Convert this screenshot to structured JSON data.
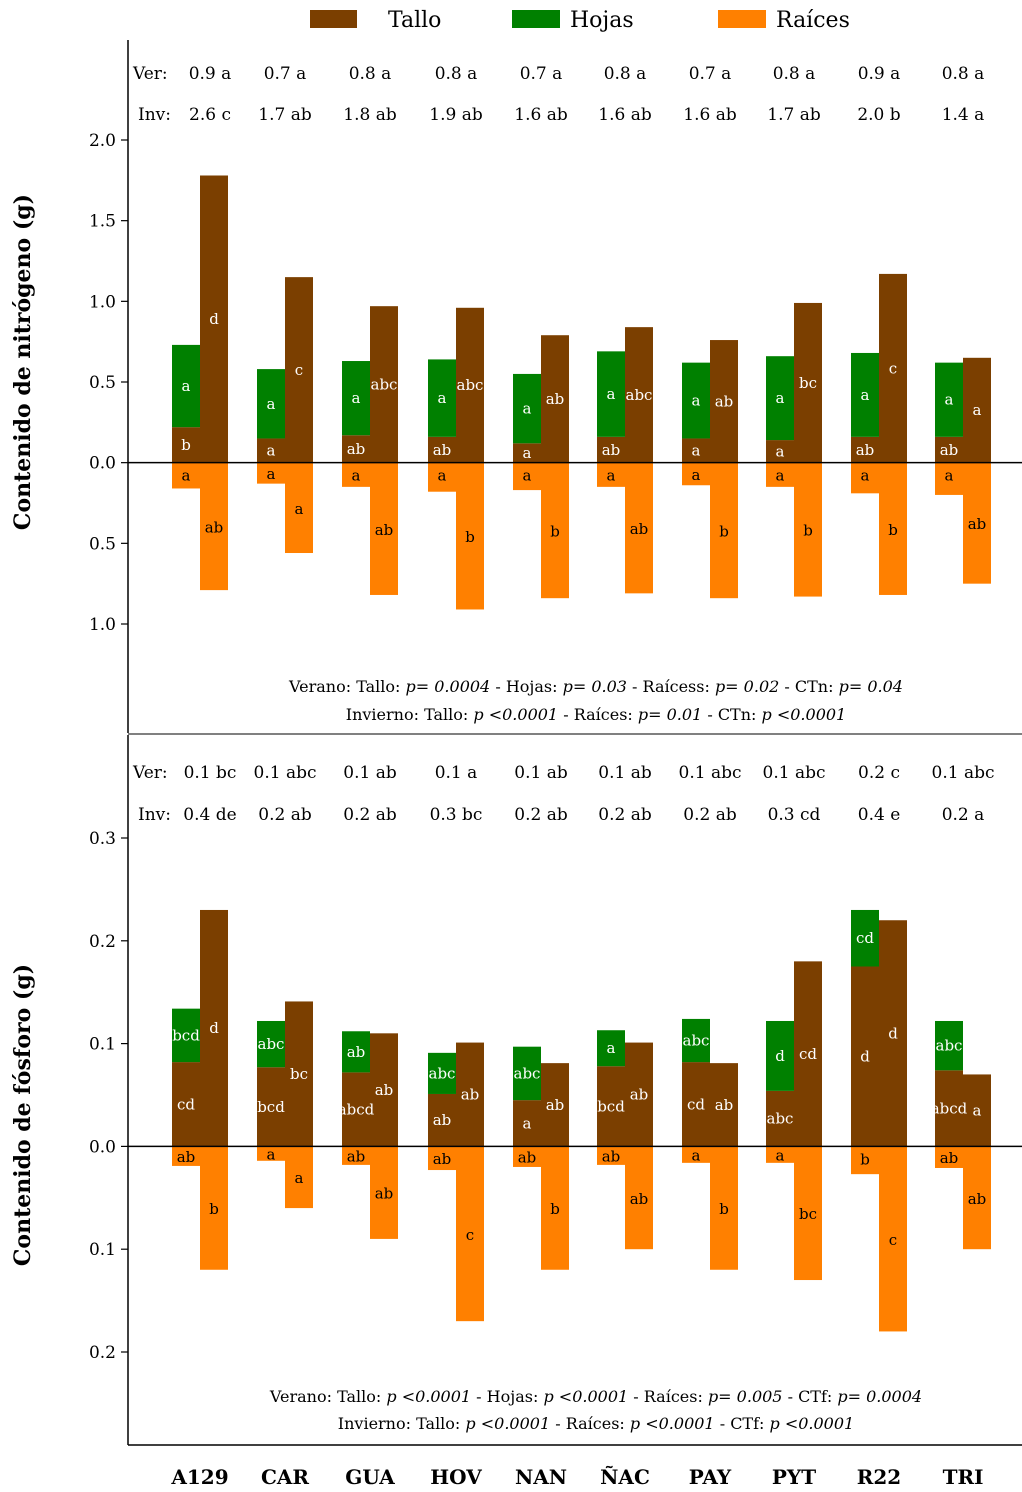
{
  "colors": {
    "tallo": "#7B3F00",
    "hojas": "#008000",
    "raices": "#FF8000"
  },
  "legend": [
    {
      "key": "tallo",
      "label": "Tallo"
    },
    {
      "key": "hojas",
      "label": "Hojas"
    },
    {
      "key": "raices",
      "label": "Raíces"
    }
  ],
  "chart_data": [
    {
      "type": "bar",
      "panel": "top",
      "ylabel": "Contenido de nitrógeno (g)",
      "ylim": [
        -1.0,
        2.0
      ],
      "yticks": [
        {
          "value": 2.0,
          "label": "2.0"
        },
        {
          "value": 1.5,
          "label": "1.5"
        },
        {
          "value": 1.0,
          "label": "1.0"
        },
        {
          "value": 0.5,
          "label": "0.5"
        },
        {
          "value": 0.0,
          "label": "0.0"
        },
        {
          "value": -0.5,
          "label": "0.5"
        },
        {
          "value": -1.0,
          "label": "1.0"
        }
      ],
      "categories": [
        "A129",
        "CAR",
        "GUA",
        "HOV",
        "NAN",
        "ÑAC",
        "PAY",
        "PYT",
        "R22",
        "TRI"
      ],
      "ver_prefix": "Ver:",
      "inv_prefix": "Inv:",
      "ver_values": [
        "0.9 a",
        "0.7 a",
        "0.8 a",
        "0.8 a",
        "0.7 a",
        "0.8 a",
        "0.7 a",
        "0.8 a",
        "0.9 a",
        "0.8 a"
      ],
      "inv_values": [
        "2.6 c",
        "1.7 ab",
        "1.8 ab",
        "1.9 ab",
        "1.6 ab",
        "1.6 ab",
        "1.6 ab",
        "1.7 ab",
        "2.0 b",
        "1.4 a"
      ],
      "series": [
        {
          "name": "Verano Tallo",
          "values": [
            0.22,
            0.15,
            0.17,
            0.16,
            0.12,
            0.16,
            0.15,
            0.14,
            0.16,
            0.16
          ],
          "letters": [
            "b",
            "a",
            "ab",
            "ab",
            "a",
            "ab",
            "a",
            "a",
            "ab",
            "ab"
          ]
        },
        {
          "name": "Verano Hojas",
          "values": [
            0.51,
            0.43,
            0.46,
            0.48,
            0.43,
            0.53,
            0.47,
            0.52,
            0.52,
            0.46
          ],
          "letters": [
            "a",
            "a",
            "a",
            "a",
            "a",
            "a",
            "a",
            "a",
            "a",
            "a"
          ]
        },
        {
          "name": "Verano Raíces",
          "values": [
            0.16,
            0.13,
            0.15,
            0.18,
            0.17,
            0.15,
            0.14,
            0.15,
            0.19,
            0.2
          ],
          "letters": [
            "a",
            "a",
            "a",
            "a",
            "a",
            "a",
            "a",
            "a",
            "a",
            "a"
          ]
        },
        {
          "name": "Invierno Tallo",
          "values": [
            1.78,
            1.15,
            0.97,
            0.96,
            0.79,
            0.84,
            0.76,
            0.99,
            1.17,
            0.65
          ],
          "letters": [
            "d",
            "c",
            "abc",
            "abc",
            "ab",
            "abc",
            "ab",
            "bc",
            "c",
            "a"
          ]
        },
        {
          "name": "Invierno Raíces",
          "values": [
            0.79,
            0.56,
            0.82,
            0.91,
            0.84,
            0.81,
            0.84,
            0.83,
            0.82,
            0.75
          ],
          "letters": [
            "ab",
            "a",
            "ab",
            "b",
            "b",
            "ab",
            "b",
            "b",
            "b",
            "ab"
          ]
        }
      ],
      "notes": [
        [
          {
            "t": "Verano: Tallo: ",
            "i": false
          },
          {
            "t": "p= 0.0004",
            "i": true
          },
          {
            "t": " - Hojas: ",
            "i": false
          },
          {
            "t": "p= 0.03",
            "i": true
          },
          {
            "t": " - Raícess: ",
            "i": false
          },
          {
            "t": "p= 0.02",
            "i": true
          },
          {
            "t": " - CTn: ",
            "i": false
          },
          {
            "t": "p= 0.04",
            "i": true
          }
        ],
        [
          {
            "t": "Invierno: Tallo: ",
            "i": false
          },
          {
            "t": "p <0.0001",
            "i": true
          },
          {
            "t": " - Raíces: ",
            "i": false
          },
          {
            "t": "p= 0.01",
            "i": true
          },
          {
            "t": " - CTn: ",
            "i": false
          },
          {
            "t": "p <0.0001",
            "i": true
          }
        ]
      ]
    },
    {
      "type": "bar",
      "panel": "bottom",
      "ylabel": "Contenido de fósforo (g)",
      "ylim": [
        -0.2,
        0.3
      ],
      "yticks": [
        {
          "value": 0.3,
          "label": "0.3"
        },
        {
          "value": 0.2,
          "label": "0.2"
        },
        {
          "value": 0.1,
          "label": "0.1"
        },
        {
          "value": 0.0,
          "label": "0.0"
        },
        {
          "value": -0.1,
          "label": "0.1"
        },
        {
          "value": -0.2,
          "label": "0.2"
        }
      ],
      "categories": [
        "A129",
        "CAR",
        "GUA",
        "HOV",
        "NAN",
        "ÑAC",
        "PAY",
        "PYT",
        "R22",
        "TRI"
      ],
      "ver_prefix": "Ver:",
      "inv_prefix": "Inv:",
      "ver_values": [
        "0.1 bc",
        "0.1 abc",
        "0.1 ab",
        "0.1 a",
        "0.1 ab",
        "0.1 ab",
        "0.1 abc",
        "0.1 abc",
        "0.2 c",
        "0.1 abc"
      ],
      "inv_values": [
        "0.4 de",
        "0.2 ab",
        "0.2 ab",
        "0.3 bc",
        "0.2 ab",
        "0.2 ab",
        "0.2 ab",
        "0.3 cd",
        "0.4 e",
        "0.2 a"
      ],
      "series": [
        {
          "name": "Verano Tallo",
          "values": [
            0.082,
            0.077,
            0.072,
            0.051,
            0.045,
            0.078,
            0.082,
            0.054,
            0.175,
            0.074
          ],
          "letters": [
            "cd",
            "bcd",
            "abcd",
            "ab",
            "a",
            "bcd",
            "cd",
            "abc",
            "d",
            "abcd"
          ]
        },
        {
          "name": "Verano Hojas",
          "values": [
            0.052,
            0.045,
            0.04,
            0.04,
            0.052,
            0.035,
            0.042,
            0.068,
            0.055,
            0.048
          ],
          "letters": [
            "bcd",
            "abc",
            "ab",
            "abc",
            "abc",
            "a",
            "abc",
            "d",
            "cd",
            "abc"
          ]
        },
        {
          "name": "Verano Raíces",
          "values": [
            0.019,
            0.014,
            0.018,
            0.023,
            0.02,
            0.018,
            0.016,
            0.016,
            0.027,
            0.021
          ],
          "letters": [
            "ab",
            "a",
            "ab",
            "ab",
            "ab",
            "ab",
            "a",
            "a",
            "b",
            "ab"
          ]
        },
        {
          "name": "Invierno Tallo",
          "values": [
            0.23,
            0.141,
            0.11,
            0.101,
            0.081,
            0.101,
            0.081,
            0.18,
            0.22,
            0.07
          ],
          "letters": [
            "d",
            "bc",
            "ab",
            "ab",
            "ab",
            "ab",
            "ab",
            "cd",
            "d",
            "a"
          ]
        },
        {
          "name": "Invierno Raíces",
          "values": [
            0.12,
            0.06,
            0.09,
            0.17,
            0.12,
            0.1,
            0.12,
            0.13,
            0.18,
            0.1
          ],
          "letters": [
            "b",
            "a",
            "ab",
            "c",
            "b",
            "ab",
            "b",
            "bc",
            "c",
            "ab"
          ]
        }
      ],
      "notes": [
        [
          {
            "t": "Verano: Tallo: ",
            "i": false
          },
          {
            "t": "p <0.0001",
            "i": true
          },
          {
            "t": " - Hojas: ",
            "i": false
          },
          {
            "t": "p <0.0001",
            "i": true
          },
          {
            "t": " - Raíces: ",
            "i": false
          },
          {
            "t": "p= 0.005",
            "i": true
          },
          {
            "t": " - CTf: ",
            "i": false
          },
          {
            "t": "p= 0.0004",
            "i": true
          }
        ],
        [
          {
            "t": "Invierno: Tallo: ",
            "i": false
          },
          {
            "t": "p <0.0001",
            "i": true
          },
          {
            "t": " - Raíces: ",
            "i": false
          },
          {
            "t": "p <0.0001",
            "i": true
          },
          {
            "t": " - CTf: ",
            "i": false
          },
          {
            "t": "p <0.0001",
            "i": true
          }
        ]
      ]
    }
  ]
}
